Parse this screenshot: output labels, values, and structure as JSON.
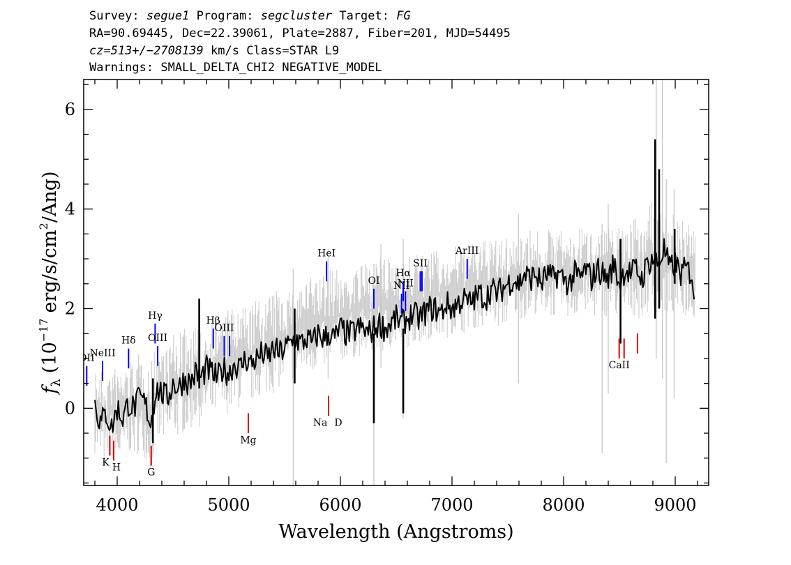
{
  "header": {
    "line1": {
      "survey_label": "Survey:",
      "survey": "segue1",
      "program_label": "Program:",
      "program": "segcluster",
      "target_label": "Target:",
      "target": "FG"
    },
    "line2": "RA=90.69445, Dec=22.39061, Plate=2887, Fiber=201, MJD=54495",
    "line3": {
      "cz": "cz=513+/−2708139",
      "rest": "km/s Class=STAR L9"
    },
    "line4": "Warnings: SMALL_DELTA_CHI2 NEGATIVE_MODEL"
  },
  "chart_data": {
    "type": "line",
    "xlabel": "Wavelength (Angstroms)",
    "ylabel": {
      "f": "f",
      "sub": "λ",
      "pre": "(10",
      "exp": "−17",
      "mid": "erg/s/cm",
      "exp2": "2",
      "post": "/Ang)"
    },
    "xlim": [
      3700,
      9300
    ],
    "ylim": [
      -1.55,
      6.6
    ],
    "xticks": [
      4000,
      5000,
      6000,
      7000,
      8000,
      9000
    ],
    "xtick_labels": [
      "4000",
      "5000",
      "6000",
      "7000",
      "8000",
      "9000"
    ],
    "yticks": [
      0,
      2,
      4,
      6
    ],
    "ytick_labels": [
      "0",
      "2",
      "4",
      "6"
    ],
    "grid": false,
    "series": [
      {
        "color": "#c8c8c8",
        "x": [
          3800,
          3850,
          3900,
          3950,
          4000,
          4050,
          4100,
          4150,
          4200,
          4250,
          4300,
          4350,
          4400,
          4450,
          4500,
          4550,
          4600,
          4650,
          4700,
          4750,
          4800,
          4850,
          4900,
          4950,
          5000,
          5050,
          5100,
          5150,
          5200,
          5250,
          5300,
          5350,
          5400,
          5450,
          5500,
          5550,
          5600,
          5650,
          5700,
          5750,
          5800,
          5850,
          5900,
          5950,
          6000,
          6050,
          6100,
          6150,
          6200,
          6250,
          6300,
          6350,
          6400,
          6450,
          6500,
          6550,
          6600,
          6650,
          6700,
          6750,
          6800,
          6850,
          6900,
          6950,
          7000,
          7050,
          7100,
          7150,
          7200,
          7250,
          7300,
          7350,
          7400,
          7450,
          7500,
          7550,
          7600,
          7650,
          7700,
          7750,
          7800,
          7850,
          7900,
          7950,
          8000,
          8050,
          8100,
          8150,
          8200,
          8250,
          8300,
          8350,
          8400,
          8450,
          8500,
          8550,
          8600,
          8650,
          8700,
          8750,
          8800,
          8850,
          8900,
          8950,
          9000,
          9050,
          9100,
          9150,
          9180
        ],
        "lo": [
          -0.9,
          -1.1,
          -1.2,
          -1.0,
          -1.2,
          -1.1,
          -0.9,
          -1.0,
          -0.9,
          -1.0,
          -1.3,
          -0.8,
          -0.7,
          -0.8,
          -0.6,
          -0.6,
          -0.5,
          -0.5,
          -0.3,
          -0.4,
          -0.2,
          -0.3,
          -0.1,
          -0.2,
          -0.1,
          -0.1,
          0.0,
          0.1,
          0.1,
          0.2,
          0.2,
          0.3,
          0.3,
          0.4,
          0.5,
          0.5,
          0.6,
          0.6,
          0.7,
          0.7,
          0.8,
          0.8,
          0.8,
          0.9,
          0.9,
          1.0,
          1.0,
          1.0,
          1.1,
          1.1,
          1.0,
          1.1,
          1.1,
          1.2,
          1.2,
          1.2,
          1.2,
          1.3,
          1.3,
          1.3,
          1.4,
          1.4,
          1.4,
          1.4,
          1.5,
          1.5,
          1.5,
          1.6,
          1.6,
          1.6,
          1.6,
          1.7,
          1.6,
          1.6,
          1.7,
          1.8,
          1.8,
          1.8,
          1.8,
          1.9,
          1.8,
          1.9,
          1.8,
          1.9,
          1.9,
          1.8,
          1.8,
          1.9,
          1.9,
          1.8,
          1.8,
          1.9,
          1.8,
          1.9,
          1.7,
          1.8,
          1.9,
          1.8,
          1.8,
          1.9,
          1.9,
          1.8,
          1.9,
          1.8,
          1.9,
          1.9,
          1.8,
          1.8,
          1.8
        ],
        "hi": [
          0.9,
          0.8,
          0.7,
          0.9,
          0.8,
          0.9,
          1.0,
          1.0,
          1.1,
          1.1,
          0.9,
          1.3,
          1.4,
          1.3,
          1.5,
          1.5,
          1.6,
          1.6,
          1.7,
          1.6,
          1.8,
          1.8,
          1.9,
          1.9,
          2.0,
          2.0,
          2.0,
          2.1,
          2.1,
          2.2,
          2.2,
          2.3,
          2.3,
          2.4,
          2.4,
          2.5,
          2.5,
          2.6,
          2.6,
          2.7,
          2.7,
          2.7,
          2.8,
          2.8,
          2.8,
          2.8,
          2.9,
          2.9,
          2.9,
          2.9,
          3.0,
          3.0,
          3.0,
          3.0,
          3.1,
          3.1,
          3.0,
          3.1,
          3.1,
          3.1,
          3.2,
          3.2,
          3.1,
          3.2,
          3.2,
          3.3,
          3.2,
          3.3,
          3.3,
          3.3,
          3.4,
          3.4,
          3.4,
          3.4,
          3.5,
          3.5,
          3.6,
          3.5,
          3.6,
          3.6,
          3.5,
          3.6,
          3.6,
          3.6,
          3.6,
          3.5,
          3.6,
          3.6,
          3.7,
          3.7,
          3.6,
          3.7,
          3.6,
          3.8,
          3.7,
          3.7,
          3.9,
          3.8,
          3.9,
          4.0,
          4.2,
          4.1,
          4.2,
          3.9,
          3.9,
          3.8,
          3.7,
          3.7,
          3.6
        ],
        "spikes": [
          {
            "x": 5577,
            "y0": -1.55,
            "y1": 2.8
          },
          {
            "x": 5890,
            "y0": 0.6,
            "y1": 3.2
          },
          {
            "x": 6300,
            "y0": -1.55,
            "y1": 2.9
          },
          {
            "x": 6363,
            "y0": 0.8,
            "y1": 3.3
          },
          {
            "x": 6562,
            "y0": -0.2,
            "y1": 3.4
          },
          {
            "x": 7595,
            "y0": 0.5,
            "y1": 3.9
          },
          {
            "x": 8345,
            "y0": -0.9,
            "y1": 3.7
          },
          {
            "x": 8400,
            "y0": 0.3,
            "y1": 4.1
          },
          {
            "x": 8830,
            "y0": 1.0,
            "y1": 6.6
          },
          {
            "x": 8885,
            "y0": 0.6,
            "y1": 6.6
          },
          {
            "x": 8920,
            "y0": -1.1,
            "y1": 4.6
          },
          {
            "x": 8990,
            "y0": 0.2,
            "y1": 4.4
          }
        ]
      },
      {
        "color": "#000000",
        "x": [
          3800,
          3850,
          3900,
          3950,
          4000,
          4050,
          4100,
          4150,
          4200,
          4250,
          4300,
          4350,
          4400,
          4450,
          4500,
          4550,
          4600,
          4650,
          4700,
          4750,
          4800,
          4850,
          4900,
          4950,
          5000,
          5050,
          5100,
          5150,
          5200,
          5250,
          5300,
          5350,
          5400,
          5450,
          5500,
          5550,
          5600,
          5650,
          5700,
          5750,
          5800,
          5850,
          5900,
          5950,
          6000,
          6050,
          6100,
          6150,
          6200,
          6250,
          6300,
          6350,
          6400,
          6450,
          6500,
          6550,
          6600,
          6650,
          6700,
          6750,
          6800,
          6850,
          6900,
          6950,
          7000,
          7050,
          7100,
          7150,
          7200,
          7250,
          7300,
          7350,
          7400,
          7450,
          7500,
          7550,
          7600,
          7650,
          7700,
          7750,
          7800,
          7850,
          7900,
          7950,
          8000,
          8050,
          8100,
          8150,
          8200,
          8250,
          8300,
          8350,
          8400,
          8450,
          8500,
          8550,
          8600,
          8650,
          8700,
          8750,
          8800,
          8850,
          8900,
          8950,
          9000,
          9050,
          9100,
          9150,
          9180
        ],
        "values": [
          0.1,
          -0.3,
          -0.1,
          -0.4,
          0.0,
          -0.2,
          0.1,
          0.0,
          0.2,
          0.1,
          -0.3,
          0.4,
          0.3,
          0.2,
          0.5,
          0.4,
          0.6,
          0.5,
          0.7,
          0.6,
          0.8,
          0.7,
          0.6,
          0.8,
          0.7,
          0.9,
          0.8,
          1.0,
          0.9,
          1.0,
          1.1,
          1.0,
          1.2,
          1.1,
          1.2,
          1.3,
          1.4,
          1.3,
          1.4,
          1.3,
          1.5,
          1.4,
          1.5,
          1.4,
          1.6,
          1.5,
          1.5,
          1.6,
          1.6,
          1.5,
          1.6,
          1.7,
          1.6,
          1.7,
          1.8,
          1.7,
          1.8,
          1.9,
          1.8,
          1.9,
          2.0,
          2.0,
          1.9,
          2.1,
          2.0,
          2.1,
          2.2,
          2.1,
          2.2,
          2.3,
          2.2,
          2.4,
          2.3,
          2.4,
          2.5,
          2.6,
          2.5,
          2.7,
          2.6,
          2.7,
          2.5,
          2.7,
          2.6,
          2.7,
          2.6,
          2.5,
          2.7,
          2.6,
          2.8,
          2.6,
          2.8,
          2.7,
          2.6,
          2.9,
          2.5,
          2.8,
          2.7,
          2.8,
          2.6,
          2.9,
          3.0,
          2.9,
          3.2,
          2.8,
          2.9,
          2.7,
          2.8,
          2.7,
          2.0
        ],
        "spikes": [
          {
            "x": 4320,
            "y0": -0.7,
            "y1": 0.6
          },
          {
            "x": 4735,
            "y0": 0.4,
            "y1": 2.2
          },
          {
            "x": 5590,
            "y0": 0.5,
            "y1": 2.0
          },
          {
            "x": 6300,
            "y0": -0.3,
            "y1": 1.5
          },
          {
            "x": 6563,
            "y0": -0.1,
            "y1": 1.6
          },
          {
            "x": 8510,
            "y0": 1.3,
            "y1": 3.4
          },
          {
            "x": 8820,
            "y0": 1.8,
            "y1": 5.4
          },
          {
            "x": 8856,
            "y0": 2.0,
            "y1": 4.8
          },
          {
            "x": 8995,
            "y0": 2.5,
            "y1": 3.6
          }
        ]
      }
    ],
    "annotations": {
      "emission": [
        {
          "label": "OII",
          "x": 3727,
          "y0": 0.45,
          "y1": 0.85,
          "ty": 0.95
        },
        {
          "label": "NeIII",
          "x": 3869,
          "y0": 0.55,
          "y1": 0.95,
          "ty": 1.05
        },
        {
          "label": "Hδ",
          "x": 4102,
          "y0": 0.8,
          "y1": 1.2,
          "ty": 1.3
        },
        {
          "label": "Hγ",
          "x": 4340,
          "y0": 1.3,
          "y1": 1.7,
          "ty": 1.8
        },
        {
          "label": "OIII",
          "x": 4363,
          "y0": 0.85,
          "y1": 1.25,
          "ty": 1.35
        },
        {
          "label": "Hβ",
          "x": 4861,
          "y0": 1.2,
          "y1": 1.6,
          "ty": 1.7
        },
        {
          "label": "OIII",
          "x": 4959,
          "y0": 1.05,
          "y1": 1.45,
          "ty": 1.55
        },
        {
          "label": "",
          "x": 5007,
          "y0": 1.05,
          "y1": 1.45,
          "ty": 0
        },
        {
          "label": "HeI",
          "x": 5876,
          "y0": 2.55,
          "y1": 2.95,
          "ty": 3.05
        },
        {
          "label": "OI",
          "x": 6300,
          "y0": 2.0,
          "y1": 2.4,
          "ty": 2.5
        },
        {
          "label": "NII",
          "x": 6548,
          "y0": 1.9,
          "y1": 2.3,
          "ty": 2.4
        },
        {
          "label": "Hα",
          "x": 6563,
          "y0": 2.15,
          "y1": 2.55,
          "ty": 2.65
        },
        {
          "label": "NII",
          "x": 6583,
          "y0": 1.95,
          "y1": 2.35,
          "ty": 2.45
        },
        {
          "label": "SII",
          "x": 6716,
          "y0": 2.35,
          "y1": 2.75,
          "ty": 2.85
        },
        {
          "label": "",
          "x": 6731,
          "y0": 2.35,
          "y1": 2.75,
          "ty": 0
        },
        {
          "label": "ArIII",
          "x": 7136,
          "y0": 2.6,
          "y1": 3.0,
          "ty": 3.1
        }
      ],
      "absorption": [
        {
          "label": "K",
          "x": 3934,
          "y0": -0.95,
          "y1": -0.55,
          "ty": -1.15
        },
        {
          "label": "H",
          "x": 3969,
          "y0": -1.05,
          "y1": -0.65,
          "ty": -1.25
        },
        {
          "label": "G",
          "x": 4305,
          "y0": -1.15,
          "y1": -0.75,
          "ty": -1.35
        },
        {
          "label": "Mg",
          "x": 5175,
          "y0": -0.5,
          "y1": -0.1,
          "ty": -0.7
        },
        {
          "label": "Na",
          "x": 5894,
          "y0": -0.15,
          "y1": 0.25,
          "ty": -0.35
        },
        {
          "label": "D",
          "x": 5894,
          "y0": 0,
          "y1": 0,
          "ty": -0.35
        },
        {
          "label": "CaII",
          "x": 8498,
          "y0": 1.0,
          "y1": 1.4,
          "ty": 0.8
        },
        {
          "label": "",
          "x": 8542,
          "y0": 1.0,
          "y1": 1.4,
          "ty": 0
        },
        {
          "label": "",
          "x": 8662,
          "y0": 1.1,
          "y1": 1.5,
          "ty": 0
        }
      ],
      "emission_color": "#0000ff",
      "absorption_color": "#e00000"
    }
  }
}
